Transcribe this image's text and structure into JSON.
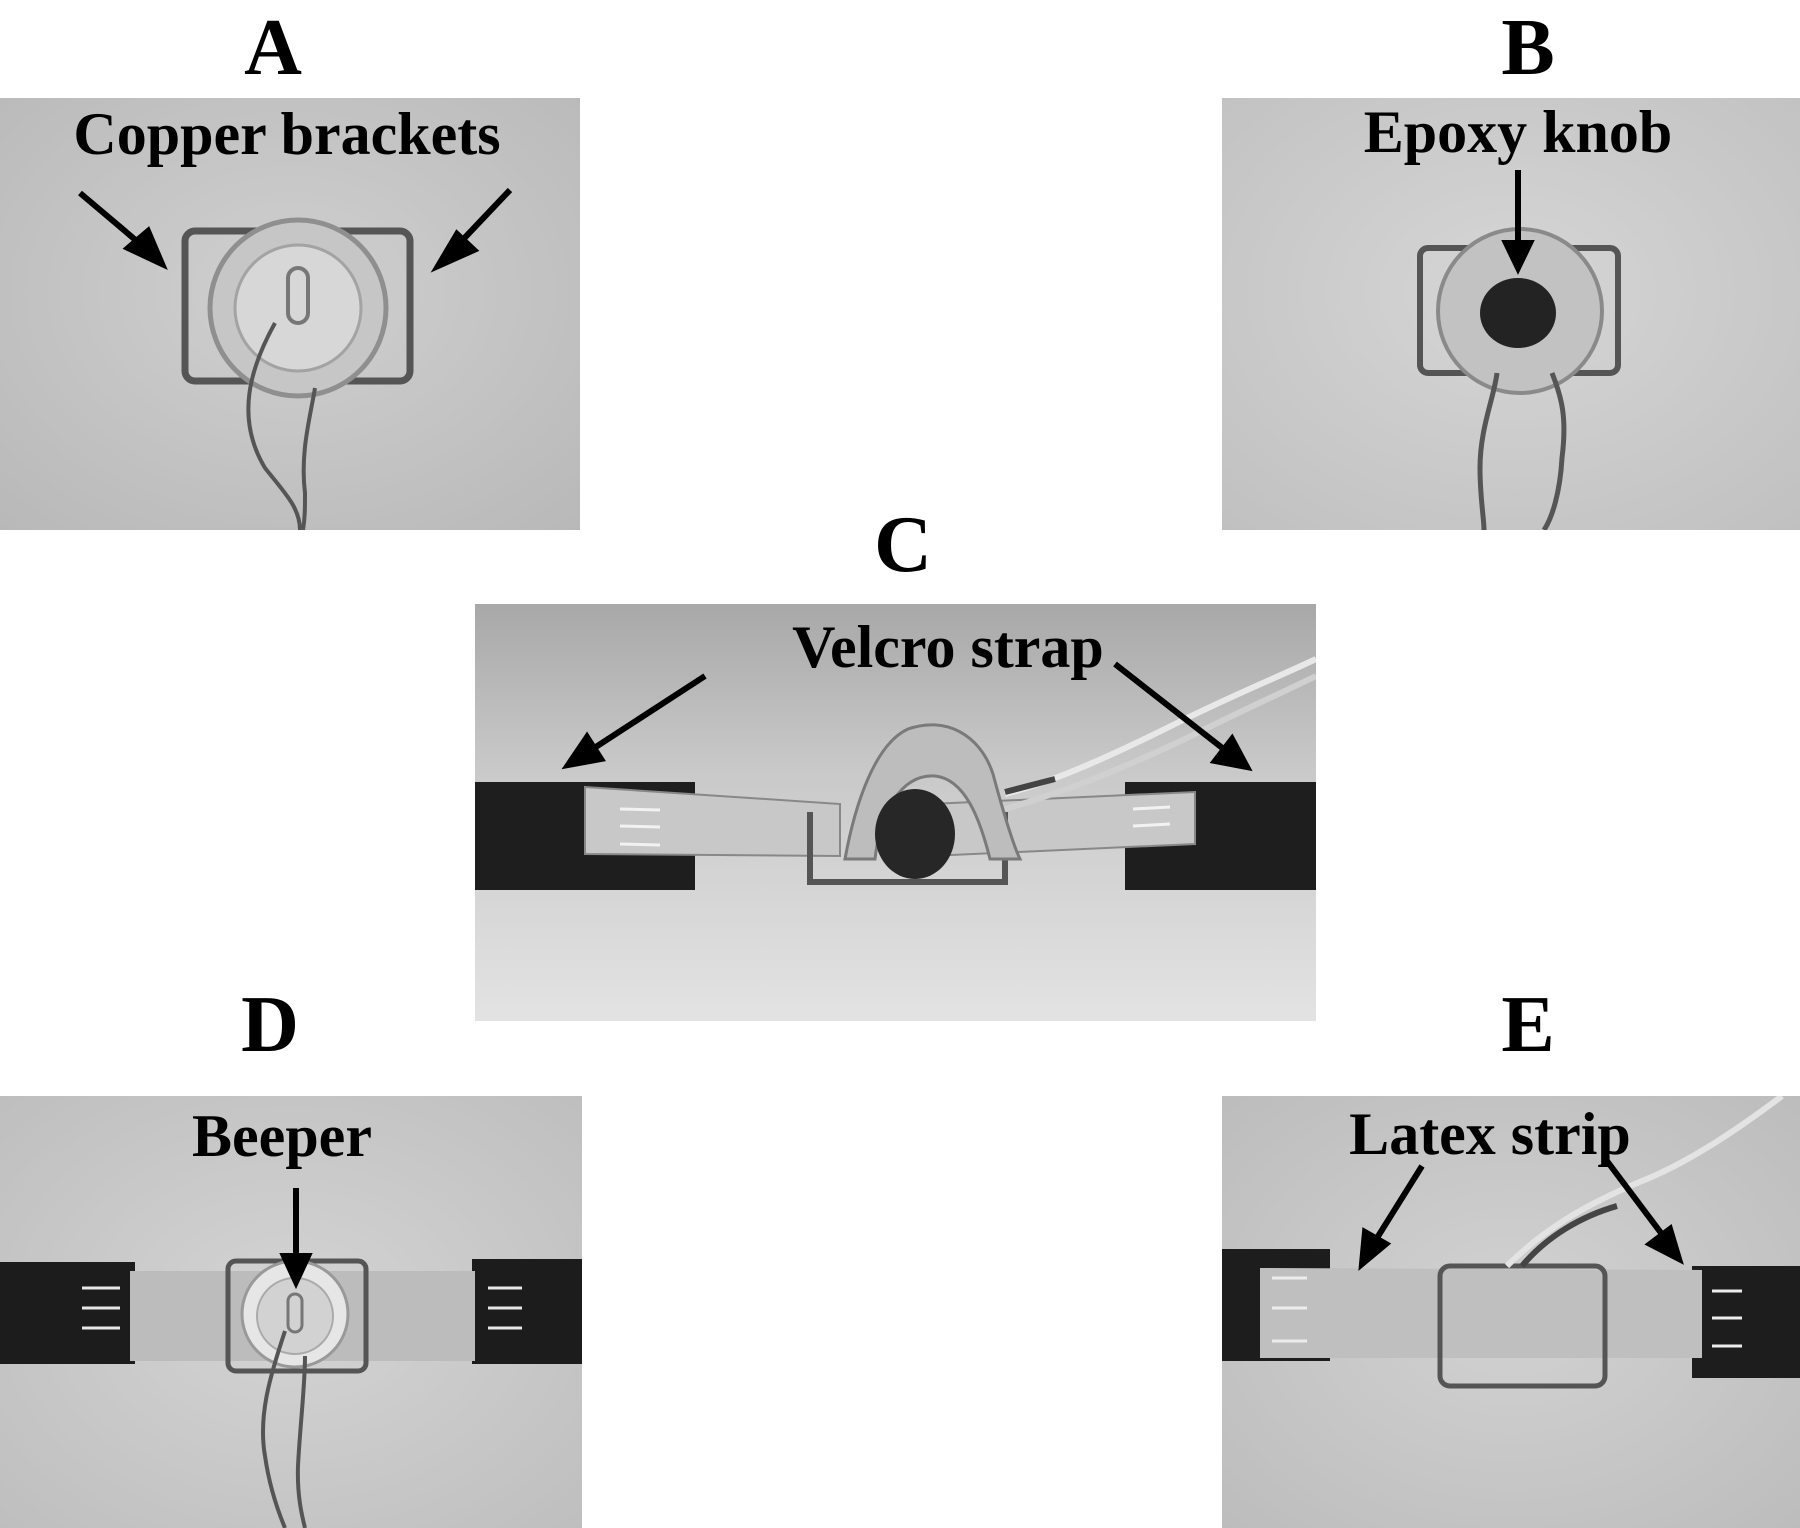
{
  "panels": {
    "a": {
      "letter": "A",
      "label": "Copper brackets"
    },
    "b": {
      "letter": "B",
      "label": "Epoxy knob"
    },
    "c": {
      "letter": "C",
      "label": "Velcro strap"
    },
    "d": {
      "letter": "D",
      "label": "Beeper"
    },
    "e": {
      "letter": "E",
      "label": "Latex strip"
    }
  }
}
